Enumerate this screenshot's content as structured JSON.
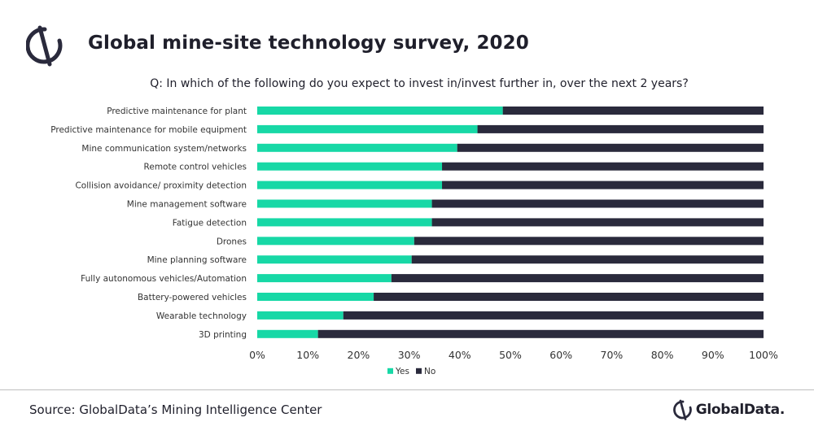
{
  "header": {
    "title": "Global mine-site technology survey, 2020",
    "question": "Q: In which of the following do you expect to invest in/invest further in, over the next 2 years?"
  },
  "footer": {
    "source": "Source: GlobalData’s Mining Intelligence Center",
    "brand": "GlobalData."
  },
  "colors": {
    "yes": "#17d8a6",
    "no": "#2a2a3c"
  },
  "chart_data": {
    "type": "bar",
    "orientation": "horizontal",
    "stacked": "percent",
    "title": "",
    "xlabel": "",
    "ylabel": "",
    "xlim": [
      0,
      100
    ],
    "x_ticks": [
      "0%",
      "10%",
      "20%",
      "30%",
      "40%",
      "50%",
      "60%",
      "70%",
      "80%",
      "90%",
      "100%"
    ],
    "categories": [
      "Predictive maintenance for plant",
      "Predictive maintenance for mobile equipment",
      "Mine communication system/networks",
      "Remote control vehicles",
      "Collision avoidance/ proximity detection",
      "Mine management software",
      "Fatigue detection",
      "Drones",
      "Mine planning software",
      "Fully autonomous vehicles/Automation",
      "Battery-powered vehicles",
      "Wearable technology",
      "3D printing"
    ],
    "series": [
      {
        "name": "Yes",
        "values": [
          48.5,
          43.5,
          39.5,
          36.5,
          36.5,
          34.5,
          34.5,
          31,
          30.5,
          26.5,
          23,
          17,
          12
        ]
      },
      {
        "name": "No",
        "values": [
          51.5,
          56.5,
          60.5,
          63.5,
          63.5,
          65.5,
          65.5,
          69,
          69.5,
          73.5,
          77,
          83,
          88
        ]
      }
    ],
    "legend": {
      "position": "bottom",
      "entries": [
        "Yes",
        "No"
      ]
    },
    "grid": false
  }
}
